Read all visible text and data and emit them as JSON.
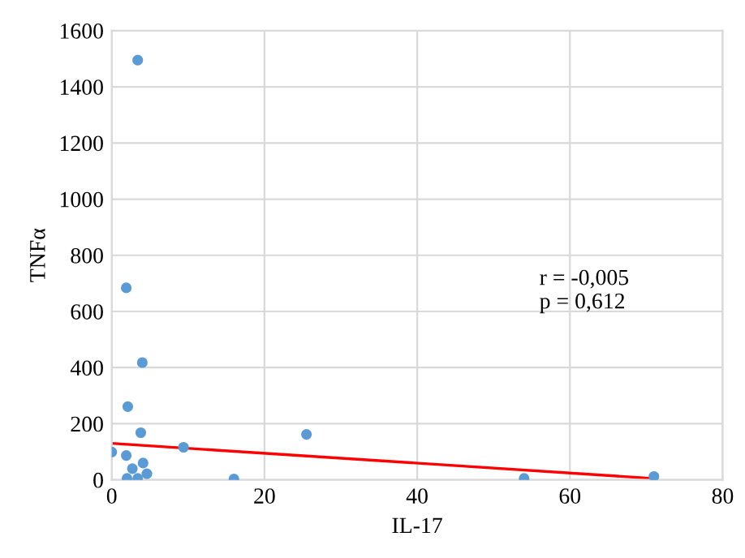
{
  "chart_data": {
    "type": "scatter",
    "xlabel": "IL-17",
    "ylabel": "TNFα",
    "x": [
      3.4,
      1.9,
      4.0,
      2.1,
      3.8,
      0,
      1.9,
      9.4,
      25.5,
      16,
      54,
      71,
      2.0,
      3.4,
      2.7,
      4.1,
      4.6
    ],
    "series": [
      {
        "color": "#5b9bd5",
        "marker": "circle",
        "values": [
          1495,
          684,
          418,
          261,
          168,
          99,
          87,
          116,
          162,
          3,
          5,
          12,
          5,
          5,
          40,
          60,
          22
        ]
      },
      {
        "type": "line",
        "color": "#ff0000",
        "x": [
          0,
          71
        ],
        "values": [
          130,
          5
        ]
      }
    ],
    "xlim": [
      0,
      80
    ],
    "ylim": [
      0,
      1600
    ],
    "xticks": [
      0,
      20,
      40,
      60,
      80
    ],
    "yticks": [
      0,
      200,
      400,
      600,
      800,
      1000,
      1200,
      1400,
      1600
    ],
    "grid": true,
    "annotations": [
      "r = -0,005\np = 0,612"
    ]
  }
}
